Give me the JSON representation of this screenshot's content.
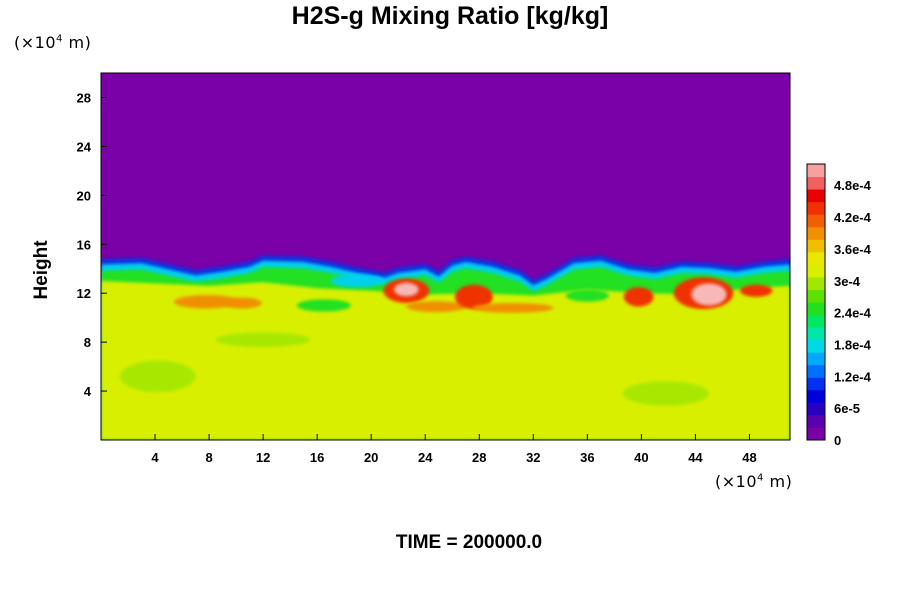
{
  "chart_data": {
    "type": "heatmap",
    "title": "H2S-g Mixing Ratio [kg/kg]",
    "ylabel": "Height",
    "x_unit_prefix": "(×10",
    "x_unit_exp": "4",
    "x_unit_suffix": " m)",
    "y_unit_prefix": "(×10",
    "y_unit_exp": "4",
    "y_unit_suffix": " m)",
    "xlim": [
      0,
      51
    ],
    "ylim": [
      0,
      30
    ],
    "x_ticks": [
      4,
      8,
      12,
      16,
      20,
      24,
      28,
      32,
      36,
      40,
      44,
      48
    ],
    "y_ticks": [
      4,
      8,
      12,
      16,
      20,
      24,
      28
    ],
    "colorbar": {
      "range": [
        0,
        0.00052
      ],
      "tick_values": [
        0,
        6e-05,
        0.00012,
        0.00018,
        0.00024,
        0.0003,
        0.00036,
        0.00042,
        0.00048
      ],
      "tick_labels": [
        "0",
        "6e-5",
        "1.2e-4",
        "1.8e-4",
        "2.4e-4",
        "3e-4",
        "3.6e-4",
        "4.2e-4",
        "4.8e-4"
      ],
      "colors": [
        "#7a00a8",
        "#5a00b0",
        "#2a00c0",
        "#0000d8",
        "#0030f0",
        "#0070ff",
        "#00a8ff",
        "#00d8e8",
        "#00e8a8",
        "#00e860",
        "#20e020",
        "#60e000",
        "#a0e800",
        "#d8f000",
        "#e8e800",
        "#f0c000",
        "#f09000",
        "#f06000",
        "#f03000",
        "#e80000",
        "#f06060",
        "#f8a0a0"
      ],
      "position": "right"
    },
    "field_description_values": {
      "upper_background": 0,
      "lower_background": 0.000355,
      "interface_height_range": [
        12,
        15
      ]
    },
    "colors": {
      "upper": "#7a00a8",
      "lower": "#d8f000",
      "lower_shade": "#a8e800",
      "interface_blue": "#1030e0",
      "interface_cyan": "#00d0f0",
      "interface_green": "#20e020",
      "orange": "#f09000",
      "red": "#f03000",
      "pink": "#f8b8b8"
    },
    "annotations": {
      "time_label": "TIME = 200000.0"
    }
  }
}
